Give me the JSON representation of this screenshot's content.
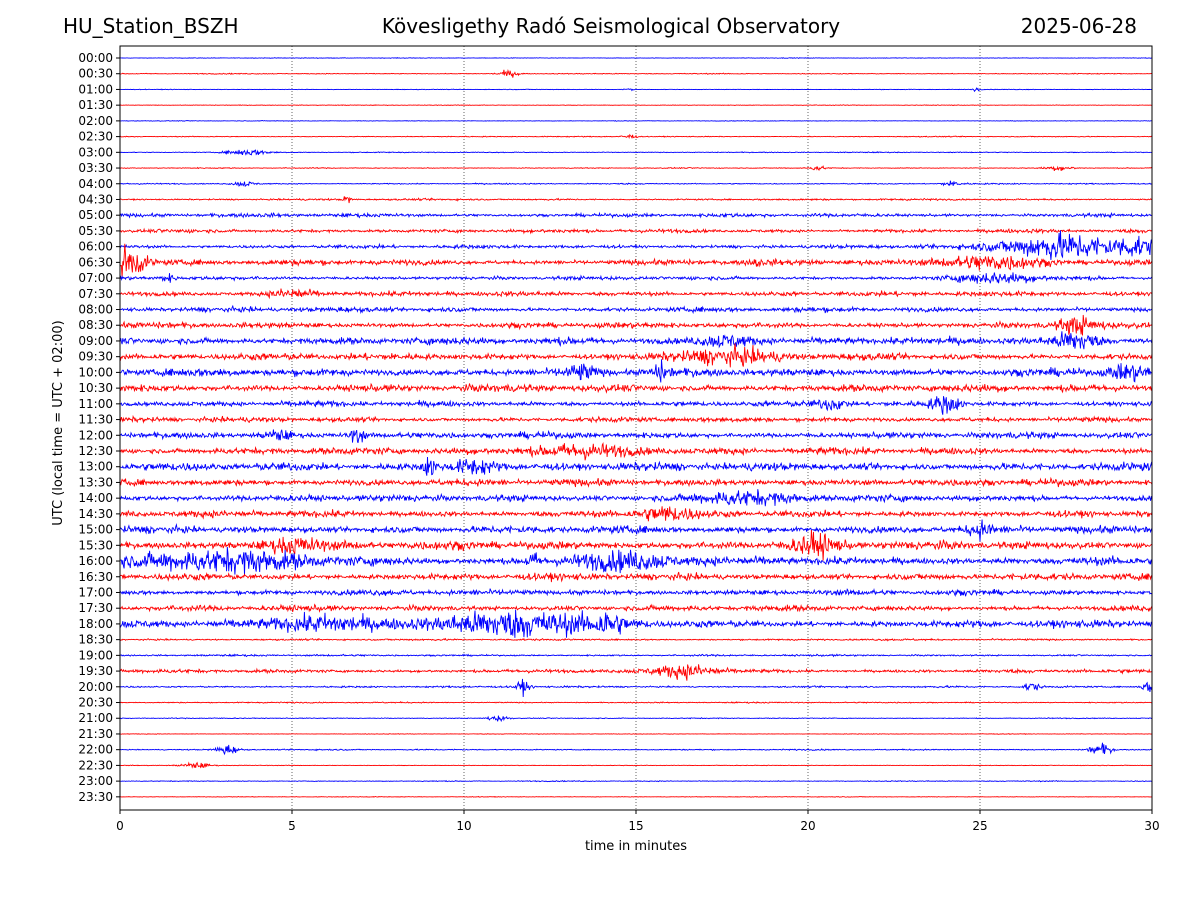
{
  "header": {
    "station": "HU_Station_BSZH",
    "observatory": "Kövesligethy Radó Seismological Observatory",
    "date": "2025-06-28"
  },
  "colors": {
    "odd_trace": "#0000ff",
    "even_trace": "#ff0000",
    "grid": "#000000"
  },
  "chart_data": {
    "type": "line",
    "title": "Kövesligethy Radó Seismological Observatory",
    "xlabel": "time in minutes",
    "ylabel": "UTC (local time = UTC + 02:00)",
    "xlim": [
      0,
      30
    ],
    "x_ticks": [
      0,
      5,
      10,
      15,
      20,
      25,
      30
    ],
    "grid": "vertical dotted at x ticks",
    "row_labels": [
      "00:00",
      "00:30",
      "01:00",
      "01:30",
      "02:00",
      "02:30",
      "03:00",
      "03:30",
      "04:00",
      "04:30",
      "05:00",
      "05:30",
      "06:00",
      "06:30",
      "07:00",
      "07:30",
      "08:00",
      "08:30",
      "09:00",
      "09:30",
      "10:00",
      "10:30",
      "11:00",
      "11:30",
      "12:00",
      "12:30",
      "13:00",
      "13:30",
      "14:00",
      "14:30",
      "15:00",
      "15:30",
      "16:00",
      "16:30",
      "17:00",
      "17:30",
      "18:00",
      "18:30",
      "19:00",
      "19:30",
      "20:00",
      "20:30",
      "21:00",
      "21:30",
      "22:00",
      "22:30",
      "23:00",
      "23:30"
    ],
    "series_colors": [
      "blue",
      "red"
    ],
    "row_noise_level": [
      0.1,
      0.15,
      0.1,
      0.1,
      0.1,
      0.15,
      0.15,
      0.15,
      0.2,
      0.3,
      0.6,
      0.6,
      0.6,
      0.9,
      0.6,
      0.8,
      0.8,
      0.9,
      1.2,
      1.1,
      1.3,
      1.2,
      0.9,
      0.8,
      1.0,
      1.1,
      1.3,
      1.1,
      1.1,
      1.1,
      1.2,
      1.4,
      1.4,
      1.1,
      0.9,
      0.9,
      1.2,
      0.3,
      0.3,
      0.6,
      0.3,
      0.2,
      0.15,
      0.1,
      0.2,
      0.1,
      0.15,
      0.1
    ],
    "events": [
      {
        "row": 1,
        "x": 11.3,
        "amp": 1.2,
        "dur": 0.3
      },
      {
        "row": 2,
        "x": 14.8,
        "amp": 1.0,
        "dur": 0.1
      },
      {
        "row": 2,
        "x": 24.9,
        "amp": 0.8,
        "dur": 0.1
      },
      {
        "row": 5,
        "x": 14.8,
        "amp": 1.0,
        "dur": 0.2
      },
      {
        "row": 6,
        "x": 3.7,
        "amp": 1.2,
        "dur": 0.6
      },
      {
        "row": 7,
        "x": 20.3,
        "amp": 1.0,
        "dur": 0.2
      },
      {
        "row": 7,
        "x": 27.3,
        "amp": 0.9,
        "dur": 0.4
      },
      {
        "row": 8,
        "x": 3.6,
        "amp": 1.0,
        "dur": 0.3
      },
      {
        "row": 8,
        "x": 24.2,
        "amp": 1.0,
        "dur": 0.3
      },
      {
        "row": 9,
        "x": 6.6,
        "amp": 1.6,
        "dur": 0.1
      },
      {
        "row": 12,
        "x": 27.4,
        "amp": 5.0,
        "dur": 1.8
      },
      {
        "row": 12,
        "x": 29.6,
        "amp": 3.0,
        "dur": 0.6
      },
      {
        "row": 13,
        "x": 0.2,
        "amp": 6.0,
        "dur": 0.5
      },
      {
        "row": 13,
        "x": 25.3,
        "amp": 3.0,
        "dur": 1.4
      },
      {
        "row": 13,
        "x": 18.5,
        "amp": 1.8,
        "dur": 0.1
      },
      {
        "row": 14,
        "x": 25.5,
        "amp": 2.0,
        "dur": 1.2
      },
      {
        "row": 14,
        "x": 1.4,
        "amp": 1.5,
        "dur": 0.2
      },
      {
        "row": 15,
        "x": 5.0,
        "amp": 1.8,
        "dur": 0.6
      },
      {
        "row": 17,
        "x": 27.8,
        "amp": 3.0,
        "dur": 0.6
      },
      {
        "row": 18,
        "x": 17.6,
        "amp": 2.2,
        "dur": 0.8
      },
      {
        "row": 18,
        "x": 27.8,
        "amp": 3.5,
        "dur": 0.6
      },
      {
        "row": 19,
        "x": 17.5,
        "amp": 2.5,
        "dur": 1.5
      },
      {
        "row": 20,
        "x": 13.4,
        "amp": 2.5,
        "dur": 0.4
      },
      {
        "row": 20,
        "x": 15.7,
        "amp": 3.0,
        "dur": 0.2
      },
      {
        "row": 20,
        "x": 29.3,
        "amp": 2.5,
        "dur": 0.6
      },
      {
        "row": 22,
        "x": 24.0,
        "amp": 3.5,
        "dur": 0.4
      },
      {
        "row": 22,
        "x": 20.7,
        "amp": 2.0,
        "dur": 0.4
      },
      {
        "row": 24,
        "x": 6.9,
        "amp": 3.0,
        "dur": 0.2
      },
      {
        "row": 24,
        "x": 4.6,
        "amp": 2.0,
        "dur": 0.4
      },
      {
        "row": 25,
        "x": 13.5,
        "amp": 2.5,
        "dur": 1.5
      },
      {
        "row": 26,
        "x": 9.0,
        "amp": 3.5,
        "dur": 0.2
      },
      {
        "row": 26,
        "x": 10.3,
        "amp": 3.0,
        "dur": 0.6
      },
      {
        "row": 28,
        "x": 18.0,
        "amp": 2.2,
        "dur": 1.5
      },
      {
        "row": 29,
        "x": 15.8,
        "amp": 2.5,
        "dur": 0.8
      },
      {
        "row": 30,
        "x": 25.0,
        "amp": 2.5,
        "dur": 0.3
      },
      {
        "row": 31,
        "x": 20.2,
        "amp": 3.5,
        "dur": 0.6
      },
      {
        "row": 31,
        "x": 5.0,
        "amp": 2.5,
        "dur": 0.8
      },
      {
        "row": 32,
        "x": 3.0,
        "amp": 3.5,
        "dur": 2.5
      },
      {
        "row": 32,
        "x": 14.5,
        "amp": 2.8,
        "dur": 1.6
      },
      {
        "row": 32,
        "x": 12.0,
        "amp": 2.5,
        "dur": 0.2
      },
      {
        "row": 36,
        "x": 11.5,
        "amp": 4.5,
        "dur": 2.5
      },
      {
        "row": 36,
        "x": 14.2,
        "amp": 3.0,
        "dur": 0.4
      },
      {
        "row": 36,
        "x": 6.0,
        "amp": 3.0,
        "dur": 1.6
      },
      {
        "row": 39,
        "x": 16.5,
        "amp": 2.5,
        "dur": 0.9
      },
      {
        "row": 40,
        "x": 11.7,
        "amp": 2.5,
        "dur": 0.2
      },
      {
        "row": 40,
        "x": 26.5,
        "amp": 2.0,
        "dur": 0.2
      },
      {
        "row": 40,
        "x": 29.9,
        "amp": 2.0,
        "dur": 0.2
      },
      {
        "row": 42,
        "x": 11.0,
        "amp": 1.2,
        "dur": 0.3
      },
      {
        "row": 44,
        "x": 3.1,
        "amp": 2.0,
        "dur": 0.3
      },
      {
        "row": 44,
        "x": 28.5,
        "amp": 2.5,
        "dur": 0.3
      },
      {
        "row": 45,
        "x": 2.2,
        "amp": 1.2,
        "dur": 0.4
      }
    ]
  }
}
